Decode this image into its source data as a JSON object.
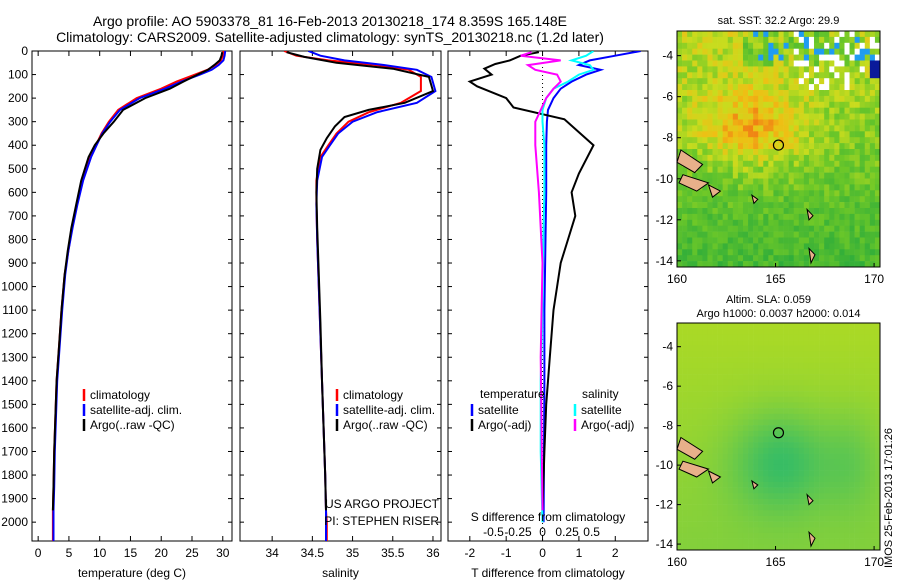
{
  "header": {
    "line1": "Argo profile: AO 5903378_81 16-Feb-2013 20130218_174 8.359S 165.148E",
    "line2": "Climatology: CARS2009. Satellite-adjusted climatology: synTS_20130218.nc (1.2d later)"
  },
  "side_text": "IMOS 25-Feb-2013 17:01:26",
  "colors": {
    "climatology": "#ff0000",
    "satellite": "#0000ff",
    "argo": "#000000",
    "sat_salinity": "#00ffff",
    "argo_salinity": "#ff00ff"
  },
  "chart_data": [
    {
      "type": "line",
      "id": "temperature",
      "xlabel": "temperature (deg C)",
      "ylabel": "",
      "xlim": [
        -1,
        31.5
      ],
      "ylim": [
        2080,
        0
      ],
      "xticks": [
        0,
        5,
        10,
        15,
        20,
        25,
        30
      ],
      "xtick_labels": [
        "0",
        "5",
        "10",
        "15",
        "20",
        "25",
        "30"
      ],
      "yticks": [
        0,
        100,
        200,
        300,
        400,
        500,
        600,
        700,
        800,
        900,
        1000,
        1100,
        1200,
        1300,
        1400,
        1500,
        1600,
        1700,
        1800,
        1900,
        2000
      ],
      "ytick_labels": [
        "0",
        "100",
        "200",
        "300",
        "400",
        "500",
        "600",
        "700",
        "800",
        "900",
        "1000",
        "1100",
        "1200",
        "1300",
        "1400",
        "1500",
        "1600",
        "1700",
        "1800",
        "1900",
        "2000"
      ],
      "legend": [
        "climatology",
        "satellite-adj. clim.",
        "Argo(..raw -QC)"
      ],
      "series": [
        {
          "name": "climatology",
          "color": "#ff0000",
          "x": [
            30.1,
            30.0,
            29.7,
            28.8,
            27.5,
            25.5,
            22.5,
            20,
            16,
            13,
            11.5,
            10.3,
            9.4,
            8.4,
            7.2,
            6.3,
            5.5,
            4.9,
            4.3,
            3.8,
            3.4,
            3.0,
            2.8,
            2.6,
            2.5,
            2.4,
            2.4
          ],
          "y": [
            0,
            20,
            40,
            60,
            80,
            100,
            130,
            160,
            200,
            250,
            300,
            350,
            400,
            450,
            550,
            650,
            750,
            850,
            950,
            1100,
            1250,
            1400,
            1550,
            1700,
            1850,
            1950,
            2080
          ]
        },
        {
          "name": "satellite-adj. clim.",
          "color": "#0000ff",
          "x": [
            30.4,
            30.3,
            30.1,
            29.3,
            28.2,
            26.3,
            23.3,
            20.6,
            16.5,
            13.3,
            11.7,
            10.4,
            9.5,
            8.6,
            7.3,
            6.4,
            5.6,
            4.9,
            4.4,
            3.9,
            3.5,
            3.1,
            2.9,
            2.7,
            2.6,
            2.5,
            2.5
          ],
          "y": [
            0,
            20,
            40,
            60,
            80,
            100,
            130,
            160,
            200,
            250,
            300,
            350,
            400,
            450,
            550,
            650,
            750,
            850,
            950,
            1100,
            1250,
            1400,
            1550,
            1700,
            1850,
            1950,
            2080
          ]
        },
        {
          "name": "Argo(..raw -QC)",
          "color": "#000000",
          "x": [
            29.9,
            29.8,
            29.5,
            28.6,
            27.6,
            25.9,
            23.6,
            21.4,
            17.4,
            13.8,
            12.3,
            10.6,
            9.2,
            8.2,
            7.0,
            6.2,
            5.4,
            4.8,
            4.3,
            3.8,
            3.4,
            3.0,
            2.8,
            2.6,
            2.5,
            2.4
          ],
          "y": [
            5,
            20,
            40,
            60,
            80,
            100,
            130,
            160,
            200,
            250,
            300,
            350,
            400,
            450,
            550,
            650,
            750,
            850,
            950,
            1100,
            1250,
            1400,
            1550,
            1700,
            1850,
            1950
          ]
        }
      ]
    },
    {
      "type": "line",
      "id": "salinity",
      "xlabel": "salinity",
      "xlim": [
        33.6,
        36.1
      ],
      "ylim": [
        2080,
        0
      ],
      "xticks": [
        34,
        34.5,
        35,
        35.5,
        36
      ],
      "xtick_labels": [
        "34",
        "34.5",
        "35",
        "35.5",
        "36"
      ],
      "legend": [
        "climatology",
        "satellite-adj. clim.",
        "Argo(..raw -QC)"
      ],
      "annotation_1": "US ARGO PROJECT",
      "annotation_2": "PI: STEPHEN RISER",
      "series": [
        {
          "name": "climatology",
          "color": "#ff0000",
          "x": [
            34.15,
            34.3,
            34.7,
            35.3,
            35.7,
            35.85,
            35.85,
            35.6,
            35.2,
            34.95,
            34.8,
            34.7,
            34.6,
            34.55,
            34.55,
            34.56,
            34.58,
            34.6,
            34.62,
            34.64,
            34.66,
            34.67,
            34.68,
            34.68
          ],
          "y": [
            0,
            20,
            40,
            60,
            80,
            110,
            170,
            220,
            260,
            300,
            350,
            400,
            450,
            550,
            650,
            800,
            1000,
            1200,
            1400,
            1600,
            1800,
            1950,
            2000,
            2080
          ]
        },
        {
          "name": "satellite-adj. clim.",
          "color": "#0000ff",
          "x": [
            34.45,
            34.6,
            34.9,
            35.4,
            35.8,
            35.98,
            36.03,
            35.8,
            35.3,
            35.0,
            34.82,
            34.72,
            34.62,
            34.56,
            34.55,
            34.56,
            34.58,
            34.6,
            34.62,
            34.64,
            34.66,
            34.67,
            34.67,
            34.67
          ],
          "y": [
            0,
            20,
            40,
            60,
            80,
            110,
            170,
            220,
            260,
            300,
            350,
            400,
            450,
            550,
            650,
            800,
            1000,
            1200,
            1400,
            1600,
            1800,
            1950,
            2000,
            2080
          ]
        },
        {
          "name": "Argo(..raw -QC)",
          "color": "#000000",
          "x": [
            34.18,
            34.4,
            34.8,
            35.5,
            35.95,
            36.0,
            35.65,
            35.2,
            34.9,
            34.78,
            34.68,
            34.6,
            34.56,
            34.55,
            34.56,
            34.58,
            34.6,
            34.62,
            34.64,
            34.66,
            34.67
          ],
          "y": [
            5,
            25,
            50,
            75,
            110,
            170,
            220,
            250,
            280,
            320,
            370,
            420,
            500,
            600,
            750,
            950,
            1150,
            1400,
            1600,
            1800,
            1950
          ]
        }
      ]
    },
    {
      "type": "line",
      "id": "difference",
      "xlabel": "T difference from climatology",
      "xlabel_top": "S difference from climatology",
      "xlim": [
        -2.6,
        2.9
      ],
      "ylim": [
        2080,
        0
      ],
      "xticks": [
        -2,
        -1,
        0,
        1,
        2
      ],
      "xtick_labels": [
        "-2",
        "-1",
        "0",
        "1",
        "2"
      ],
      "s_ticks": [
        -0.5,
        -0.25,
        0,
        0.25,
        0.5
      ],
      "s_tick_labels": [
        "-0.5",
        "-0.25",
        "0",
        "0.25",
        "0.5"
      ],
      "legend_temperature_title": "temperature",
      "legend_salinity_title": "salinity",
      "legend_temperature": [
        "satellite",
        "Argo(-adj)"
      ],
      "legend_salinity": [
        "satellite",
        "Argo(-adj)"
      ],
      "series": [
        {
          "name": "T satellite",
          "color": "#0000ff",
          "x": [
            2.7,
            2.0,
            1.3,
            1.0,
            1.6,
            1.2,
            0.8,
            0.5,
            0.3,
            0.15,
            0.12,
            0.1,
            0.1,
            0.08,
            0.05,
            0.05,
            0.04,
            0.03
          ],
          "y": [
            0,
            20,
            40,
            60,
            80,
            100,
            130,
            160,
            200,
            250,
            300,
            400,
            600,
            800,
            1100,
            1400,
            1700,
            2000
          ]
        },
        {
          "name": "T Argo(-adj)",
          "color": "#000000",
          "x": [
            -0.1,
            -0.6,
            -0.9,
            -1.3,
            -1.6,
            -1.4,
            -2.0,
            -1.8,
            -1.0,
            -0.8,
            0.6,
            1.4,
            1.0,
            0.8,
            0.9,
            0.7,
            0.5,
            0.4,
            0.3,
            0.2,
            0.1,
            0.05,
            0.0
          ],
          "y": [
            5,
            20,
            40,
            55,
            75,
            100,
            130,
            150,
            200,
            240,
            290,
            400,
            520,
            600,
            700,
            800,
            900,
            1000,
            1100,
            1300,
            1500,
            1700,
            1950
          ]
        },
        {
          "name": "S satellite",
          "color": "#00ffff",
          "x": [
            1.4,
            1.2,
            0.8,
            1.3,
            1.4,
            1.0,
            0.7,
            0.3,
            0.1,
            0.0,
            0.0,
            0.05,
            0.05,
            0.02,
            0.0,
            -0.05,
            -0.05,
            0.0
          ],
          "y": [
            0,
            20,
            40,
            60,
            80,
            100,
            130,
            160,
            200,
            250,
            300,
            400,
            600,
            800,
            1100,
            1400,
            1700,
            2000
          ]
        },
        {
          "name": "S Argo(-adj)",
          "color": "#ff00ff",
          "x": [
            -0.3,
            -0.6,
            0.5,
            -0.4,
            -0.2,
            0.4,
            0.5,
            0.3,
            0.1,
            -0.2,
            -0.2,
            -0.1,
            0.0,
            -0.05,
            0.0
          ],
          "y": [
            5,
            20,
            40,
            60,
            80,
            100,
            130,
            160,
            200,
            300,
            400,
            600,
            900,
            1300,
            1950
          ]
        }
      ]
    },
    {
      "type": "heatmap",
      "id": "sst-map",
      "title": "sat. SST: 32.2  Argo: 29.9",
      "xlim": [
        160,
        170.3
      ],
      "ylim": [
        -14.3,
        -2.8
      ],
      "xticks": [
        160,
        165,
        170
      ],
      "xtick_labels": [
        "160",
        "165",
        "170"
      ],
      "yticks": [
        -4,
        -6,
        -8,
        -10,
        -12,
        -14
      ],
      "ytick_labels": [
        "-4",
        "-6",
        "-8",
        "-10",
        "-12",
        "-14"
      ],
      "marker": [
        165.148,
        -8.359
      ]
    },
    {
      "type": "heatmap",
      "id": "sla-map",
      "title": "Altim. SLA: 0.059",
      "subtitle": "Argo h1000: 0.0037  h2000: 0.014",
      "xlim": [
        160,
        170.3
      ],
      "ylim": [
        -14.3,
        -2.8
      ],
      "xticks": [
        160,
        165,
        170
      ],
      "xtick_labels": [
        "160",
        "165",
        "170"
      ],
      "yticks": [
        -4,
        -6,
        -8,
        -10,
        -12,
        -14
      ],
      "ytick_labels": [
        "-4",
        "-6",
        "-8",
        "-10",
        "-12",
        "-14"
      ],
      "marker": [
        165.148,
        -8.359
      ]
    }
  ]
}
